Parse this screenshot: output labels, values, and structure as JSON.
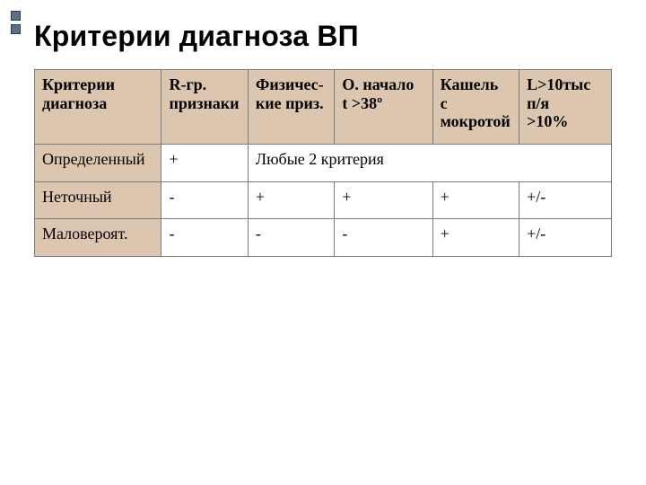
{
  "title": "Критерии диагноза ВП",
  "table": {
    "type": "table",
    "header_bg": "#dcc6af",
    "border_color": "#7a7a7a",
    "columns": [
      {
        "label_line1": "Критерии",
        "label_line2": "диагноза"
      },
      {
        "label_line1": "R-гр.",
        "label_line2": "признаки"
      },
      {
        "label_line1": "Физичес-",
        "label_line2": "кие приз."
      },
      {
        "label_line1": "О. начало",
        "label_line2": " t >38º"
      },
      {
        "label_line1": "Кашель",
        "label_line2": " с",
        "label_line3": "мокротой"
      },
      {
        "label_line1": "L>10тыс",
        "label_line2": "п/я",
        "label_line3": ">10%"
      }
    ],
    "rows": [
      {
        "label": "Определенный",
        "c1": "+",
        "merged_text": "Любые 2 критерия"
      },
      {
        "label": "Неточный",
        "c1": "-",
        "c2": "+",
        "c3": "+",
        "c4": "+",
        "c5": "+/-"
      },
      {
        "label": "Маловероят.",
        "c1": "-",
        "c2": "-",
        "c3": "-",
        "c4": "+",
        "c5": "+/-"
      }
    ]
  },
  "colors": {
    "title": "#000000",
    "text": "#000000",
    "decor_square": "#5b6f8a",
    "decor_border": "#2f3a4a",
    "background": "#ffffff"
  },
  "fonts": {
    "title_family": "Arial",
    "title_size_pt": 24,
    "body_family": "Georgia",
    "header_size_pt": 14,
    "cell_size_pt": 20
  }
}
